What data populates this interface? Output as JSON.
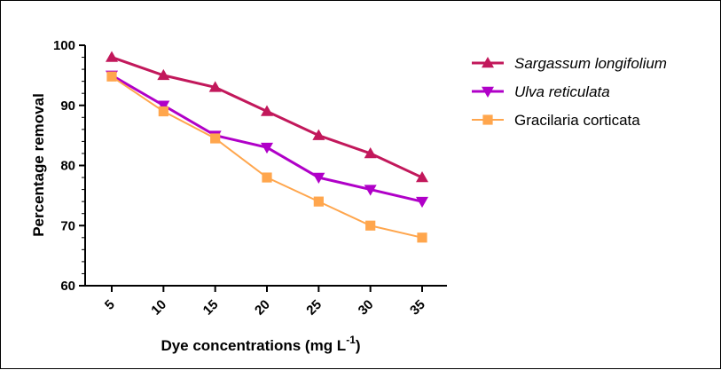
{
  "chart_data": {
    "type": "line",
    "title": "",
    "xlabel": "Dye concentrations (mg L",
    "xlabel_unit_exponent": "-1",
    "xlabel_suffix": ")",
    "ylabel": "Percentage removal",
    "categories": [
      "5",
      "10",
      "15",
      "20",
      "25",
      "30",
      "35"
    ],
    "ylim": [
      60,
      100
    ],
    "yticks": [
      "60",
      "70",
      "80",
      "90",
      "100"
    ],
    "grid": false,
    "legend_position": "right",
    "series": [
      {
        "name": "Sargassum longifolium",
        "italic": true,
        "color": "#c2185b",
        "marker": "triangle-up",
        "values": [
          98,
          95,
          93,
          89,
          85,
          82,
          78
        ]
      },
      {
        "name": "Ulva reticulata",
        "italic": true,
        "color": "#b000c8",
        "marker": "triangle-down",
        "values": [
          95,
          90,
          85,
          83,
          78,
          76,
          74
        ]
      },
      {
        "name": "Gracilaria corticata",
        "italic": false,
        "color": "#ffa64d",
        "marker": "square",
        "values": [
          94.8,
          89,
          84.5,
          78,
          74,
          70,
          68
        ]
      }
    ]
  }
}
